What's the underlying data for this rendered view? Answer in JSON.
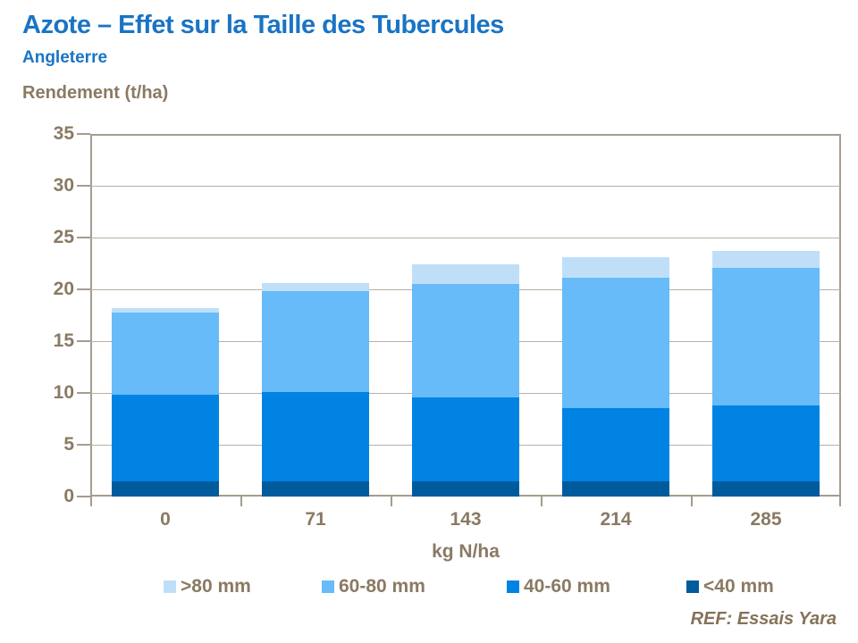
{
  "header": {
    "title": "Azote – Effet sur la Taille des Tubercules",
    "subtitle": "Angleterre"
  },
  "footer": {
    "ref": "REF: Essais Yara"
  },
  "colors": {
    "title_blue": "#1a74c4",
    "label_brown": "#8a7a64",
    "axis_line": "#a59c90",
    "gridline": "#b9b0a3"
  },
  "chart_data": {
    "type": "bar",
    "stacked": true,
    "title": "Azote – Effet sur la Taille des Tubercules",
    "xlabel": "kg N/ha",
    "ylabel": "Rendement (t/ha)",
    "categories": [
      "0",
      "71",
      "143",
      "214",
      "285"
    ],
    "series": [
      {
        "name": "<40 mm",
        "color": "#005b9d",
        "values": [
          1.5,
          1.5,
          1.5,
          1.5,
          1.5
        ]
      },
      {
        "name": "40-60 mm",
        "color": "#0083e3",
        "values": [
          8.3,
          8.6,
          8.1,
          7.0,
          7.3
        ]
      },
      {
        "name": "60-80 mm",
        "color": "#66bbf8",
        "values": [
          8.0,
          9.7,
          10.9,
          12.6,
          13.3
        ]
      },
      {
        "name": ">80 mm",
        "color": "#bfdff9",
        "values": [
          0.4,
          0.8,
          1.9,
          2.0,
          1.6
        ]
      }
    ],
    "totals": [
      18.2,
      20.6,
      22.4,
      23.1,
      23.7
    ],
    "ylim": [
      0,
      35
    ],
    "ytick_step": 5,
    "grid": true,
    "legend_position": "bottom",
    "legend_order": [
      ">80 mm",
      "60-80 mm",
      "40-60 mm",
      "<40 mm"
    ]
  }
}
